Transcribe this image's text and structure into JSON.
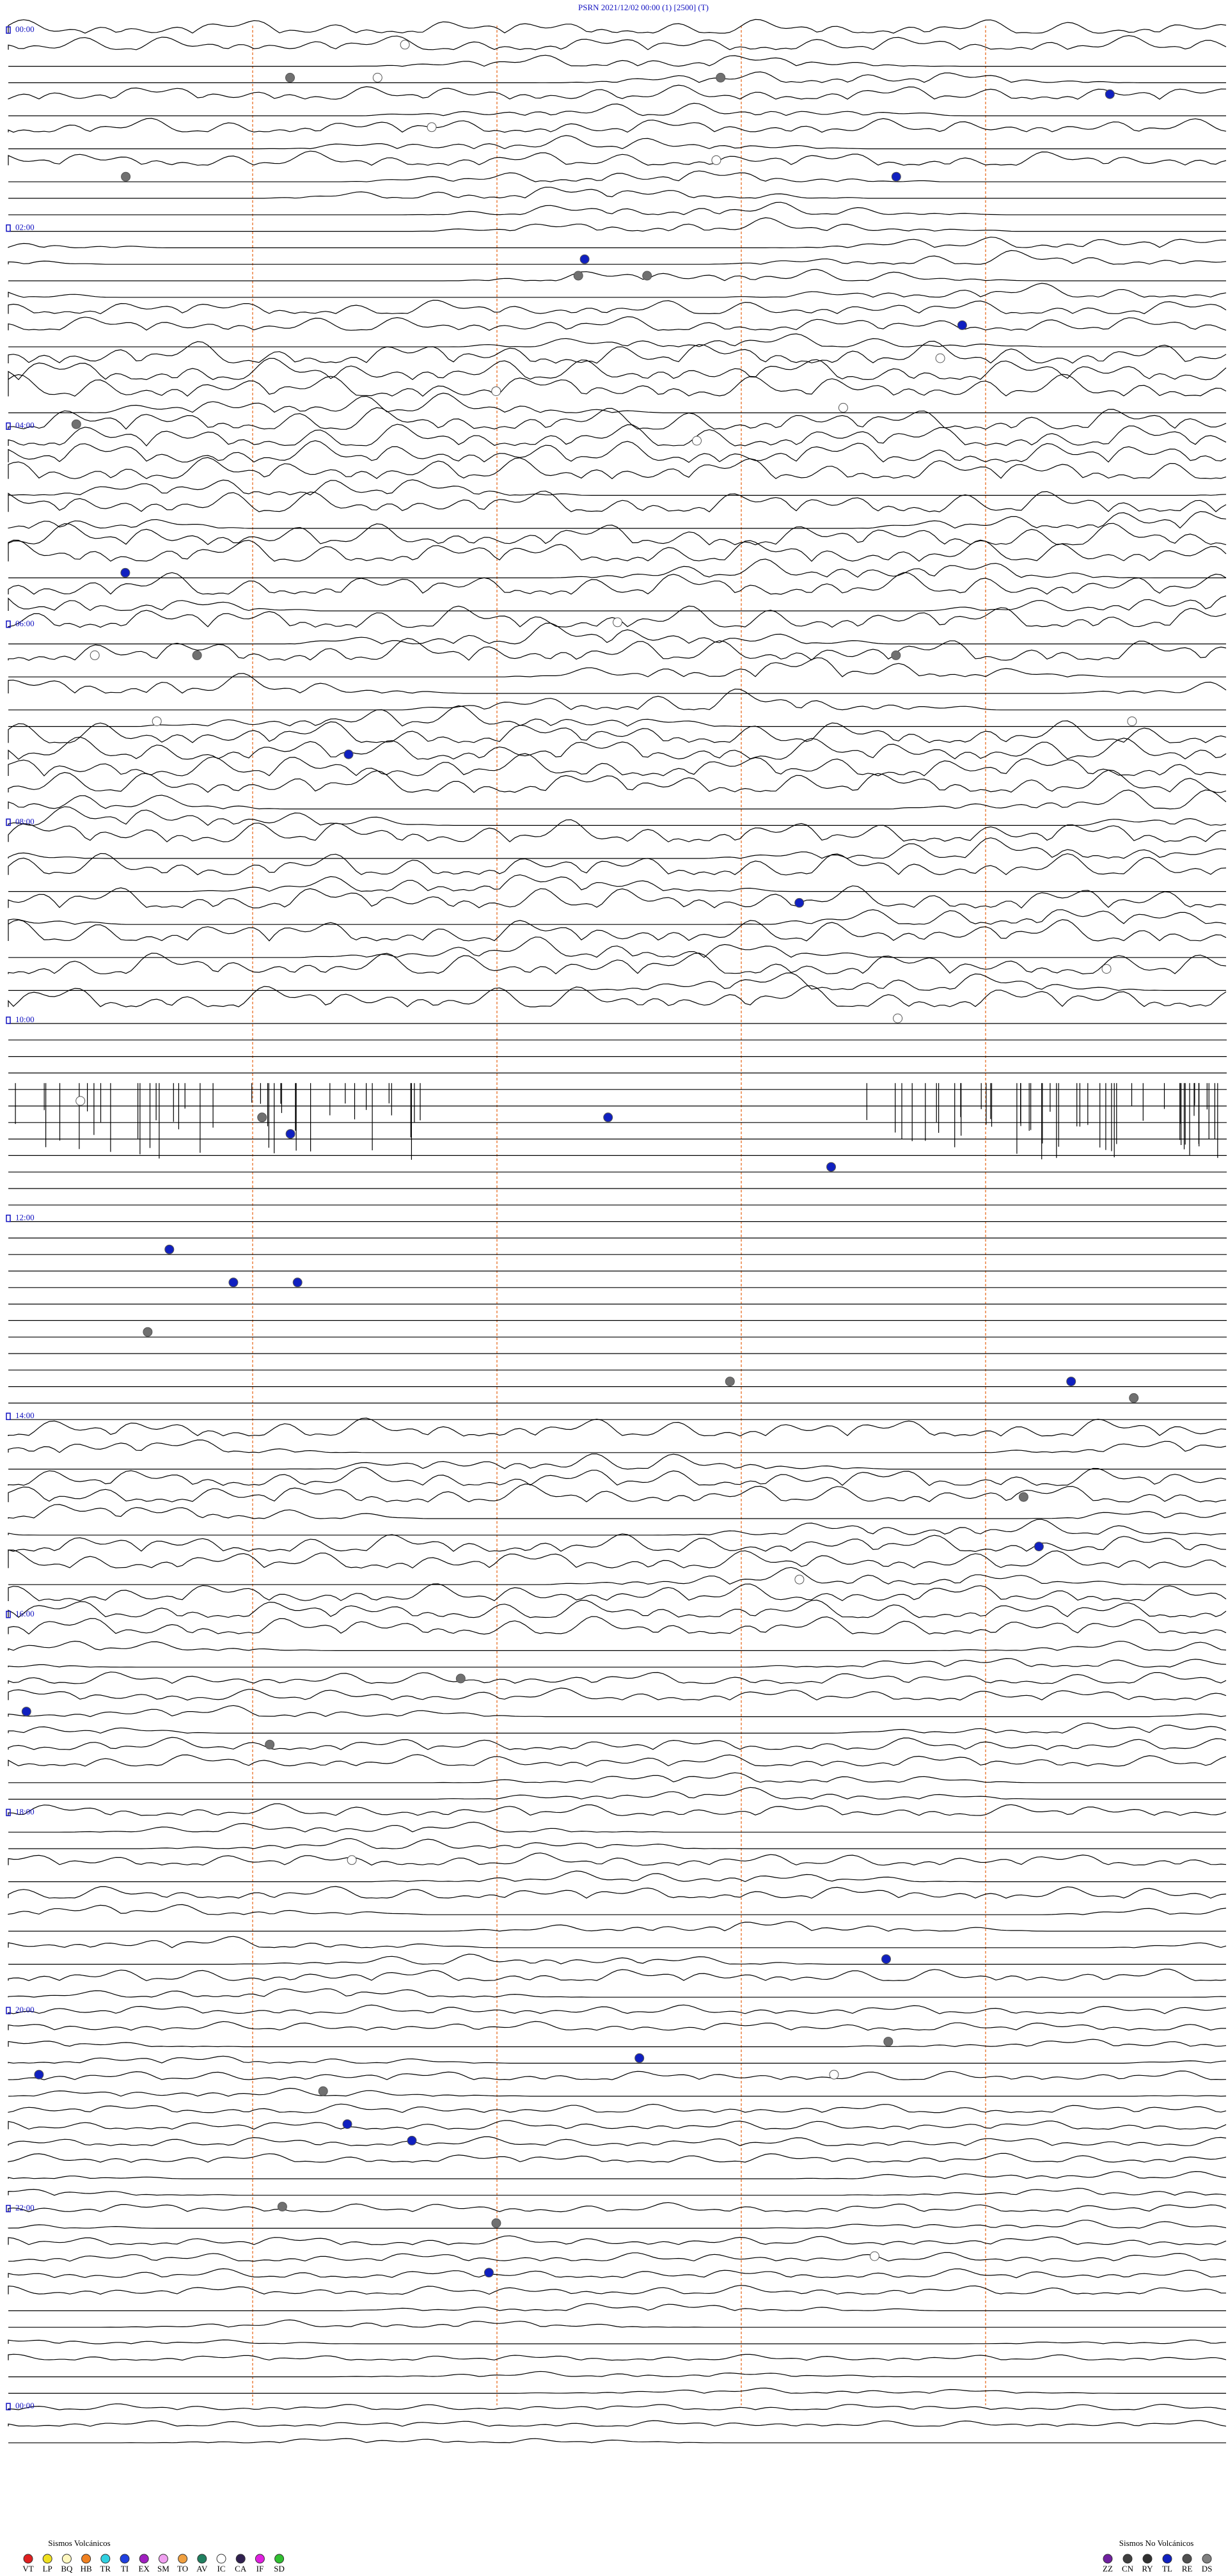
{
  "header": {
    "title": "PSRN     2021/12/02 00:00      (1)     [2500]     (T)"
  },
  "hours": [
    "00:00",
    "02:00",
    "04:00",
    "06:00",
    "08:00",
    "10:00",
    "12:00",
    "14:00",
    "16:00",
    "18:00",
    "20:00",
    "22:00",
    "00:00"
  ],
  "legend_volcanic": {
    "title": "Sismos Volcánicos",
    "items": [
      {
        "label": "VT",
        "color": "#e02020"
      },
      {
        "label": "LP",
        "color": "#f0e020"
      },
      {
        "label": "BQ",
        "color": "#fff8c0"
      },
      {
        "label": "HB",
        "color": "#f08020"
      },
      {
        "label": "TR",
        "color": "#30d0e0"
      },
      {
        "label": "TI",
        "color": "#2040e0"
      },
      {
        "label": "EX",
        "color": "#a020c0"
      },
      {
        "label": "SM",
        "color": "#f0a0f0"
      },
      {
        "label": "TO",
        "color": "#f0a040"
      },
      {
        "label": "AV",
        "color": "#208060"
      },
      {
        "label": "IC",
        "color": "#ffffff"
      },
      {
        "label": "CA",
        "color": "#302050"
      },
      {
        "label": "IF",
        "color": "#e020e0"
      },
      {
        "label": "SD",
        "color": "#30c030"
      }
    ]
  },
  "legend_nonvolcanic": {
    "title": "Sismos No Volcánicos",
    "items": [
      {
        "label": "ZZ",
        "color": "#7020a0"
      },
      {
        "label": "CN",
        "color": "#404040"
      },
      {
        "label": "RY",
        "color": "#303030"
      },
      {
        "label": "TL",
        "color": "#1020c0"
      },
      {
        "label": "RE",
        "color": "#505050"
      },
      {
        "label": "DS",
        "color": "#808080"
      }
    ]
  }
}
